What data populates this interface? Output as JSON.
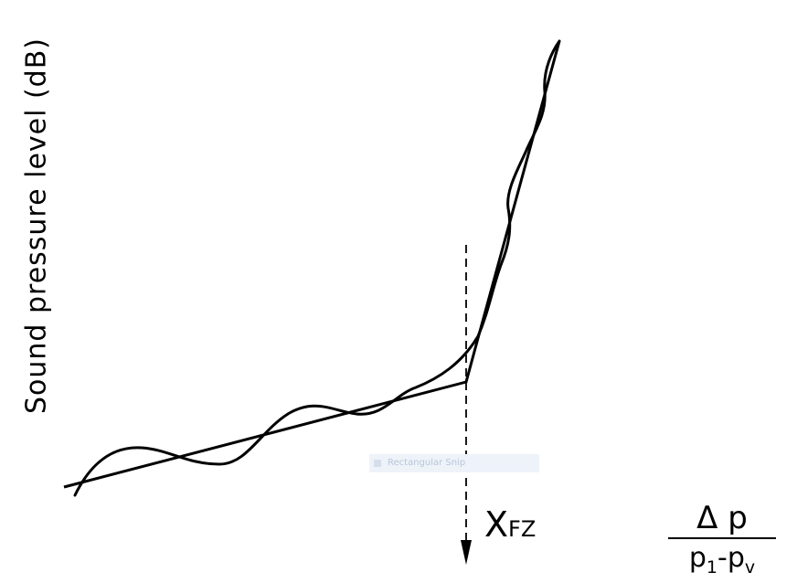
{
  "y_axis_label": "Sound pressure level (dB)",
  "marker_label": {
    "main": "X",
    "sub": "FZ"
  },
  "x_axis_expression": {
    "numerator": "Δ p",
    "denominator_first": "p",
    "denominator_first_sub": "1",
    "denominator_operator": "-p",
    "denominator_second_sub": "v"
  },
  "ghost_tooltip": {
    "label": "Rectangular Snip",
    "icon": "scissors-icon"
  },
  "colors": {
    "ink": "#000000",
    "background": "#ffffff"
  }
}
